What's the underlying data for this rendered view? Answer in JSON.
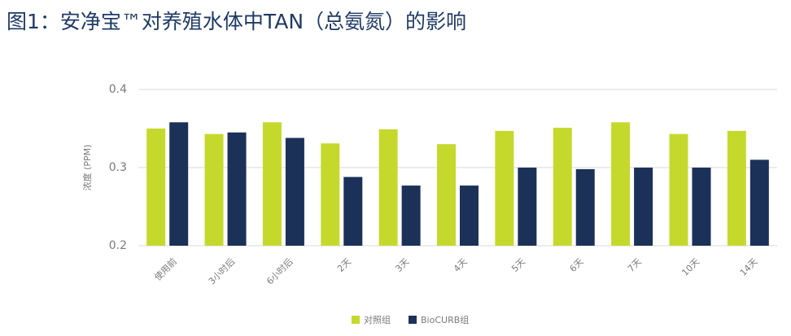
{
  "chart_data": {
    "type": "bar",
    "title": "图1：安净宝™对养殖水体中TAN（总氨氮）的影响",
    "y_label": "浓度 (PPM)",
    "categories": [
      "使用前",
      "3小时后",
      "6小时后",
      "2天",
      "3天",
      "4天",
      "5天",
      "6天",
      "7天",
      "10天",
      "14天"
    ],
    "series": [
      {
        "name": "对照组",
        "color": "#c5d92d",
        "values": [
          0.35,
          0.343,
          0.358,
          0.331,
          0.349,
          0.33,
          0.347,
          0.351,
          0.358,
          0.343,
          0.347
        ]
      },
      {
        "name": "BioCURB组",
        "color": "#1b3158",
        "values": [
          0.358,
          0.345,
          0.338,
          0.288,
          0.277,
          0.277,
          0.3,
          0.298,
          0.3,
          0.3,
          0.31
        ]
      }
    ],
    "ylim": [
      0.2,
      0.4
    ],
    "yticks": [
      0.2,
      0.3,
      0.4
    ],
    "grid": true,
    "legend": "bottom"
  }
}
